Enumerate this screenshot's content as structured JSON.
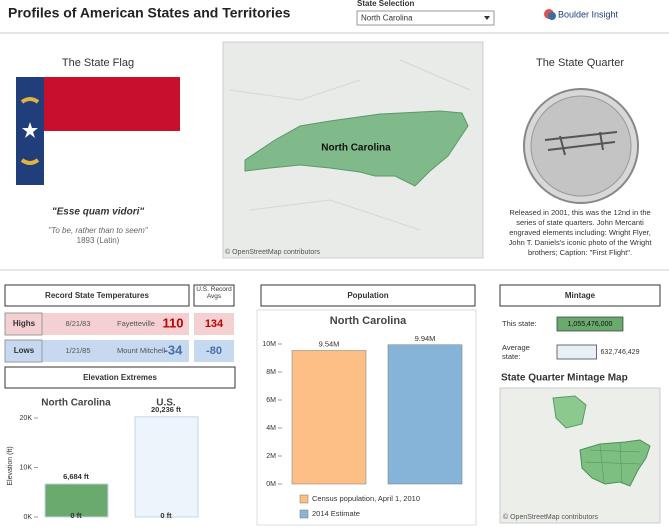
{
  "header": {
    "title": "Profiles of American States and Territories",
    "selector_label": "State Selection",
    "selected": "North Carolina",
    "logo": "Boulder Insight"
  },
  "flag": {
    "title": "The State Flag",
    "motto": "\"Esse quam vidori\"",
    "translation": "\"To be, rather than to seem\"",
    "year": "1893 (Latin)"
  },
  "map": {
    "label": "North Carolina",
    "credit": "© OpenStreetMap contributors"
  },
  "quarter": {
    "title": "The State Quarter",
    "description": "Released in 2001, this was the 12nd in the series of state quarters.  John Mercanti engraved elements including: Wright Flyer, John T. Daniels's iconic photo of the Wright brothers; Caption: \"First Flight\"."
  },
  "temperatures": {
    "title": "Record State Temperatures",
    "us_header": "U.S. Record Avgs",
    "rows": [
      {
        "label": "Highs",
        "date": "8/21/83",
        "place": "Fayetteville",
        "value": 110,
        "us": 134
      },
      {
        "label": "Lows",
        "date": "1/21/85",
        "place": "Mount Mitchell",
        "value": -34,
        "us": -80
      }
    ]
  },
  "chart_data": [
    {
      "type": "bar",
      "title": "Elevation Extremes",
      "y_label": "Elevation (ft)",
      "categories": [
        "North Carolina",
        "U.S."
      ],
      "values": [
        6684,
        20236
      ],
      "value_labels": [
        "6,684 ft",
        "20,236 ft"
      ],
      "low_values": [
        0,
        0
      ],
      "low_value_labels": [
        "0 ft",
        "0 ft"
      ],
      "colors": [
        "#6aaa6e",
        "#eef4fb"
      ],
      "ylim": [
        0,
        20500
      ],
      "yticks": [
        {
          "value": 0,
          "label": "0K"
        },
        {
          "value": 10000,
          "label": "10K"
        },
        {
          "value": 20000,
          "label": "20K"
        }
      ]
    },
    {
      "type": "bar",
      "header": "Population",
      "title": "North Carolina",
      "series": [
        {
          "name": "Census population, April 1, 2010",
          "color": "#fdbf85",
          "values": [
            9535483
          ],
          "value_labels": [
            "9.54M"
          ]
        },
        {
          "name": "2014 Estimate",
          "color": "#86b4d9",
          "values": [
            9943964
          ],
          "value_labels": [
            "9.94M"
          ]
        }
      ],
      "ylim": [
        0,
        10500000
      ],
      "yticks": [
        {
          "value": 0,
          "label": "0M"
        },
        {
          "value": 2000000,
          "label": "2M"
        },
        {
          "value": 4000000,
          "label": "4M"
        },
        {
          "value": 6000000,
          "label": "6M"
        },
        {
          "value": 8000000,
          "label": "8M"
        },
        {
          "value": 10000000,
          "label": "10M"
        }
      ]
    },
    {
      "type": "hbar",
      "title": "Mintage",
      "categories": [
        "This state:",
        "Average state:"
      ],
      "values": [
        1055476000,
        632746429
      ],
      "value_labels": [
        "1,055,476,000",
        "632,746,429"
      ],
      "colors": [
        "#6aaa6e",
        "#e8eff9"
      ],
      "xlim": [
        0,
        1600000000
      ]
    }
  ],
  "mintage_map": {
    "title": "State Quarter Mintage Map",
    "credit": "© OpenStreetMap contributors"
  }
}
